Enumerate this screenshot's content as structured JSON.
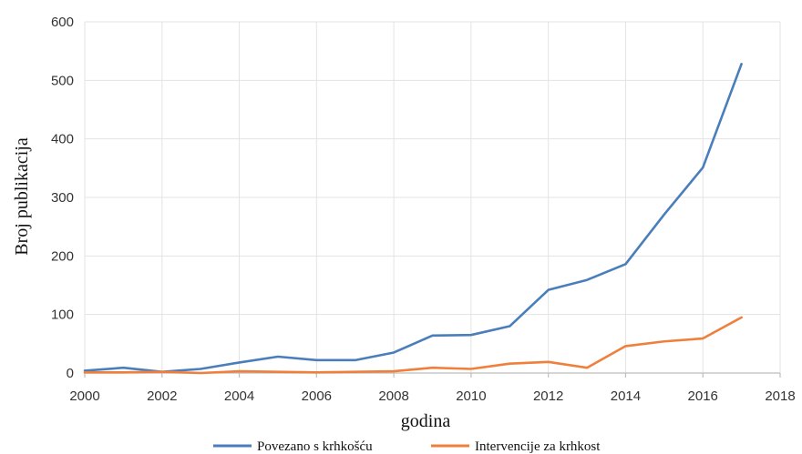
{
  "chart_data": {
    "type": "line",
    "title": "",
    "xlabel": "godina",
    "ylabel": "Broj publikacija",
    "xlim": [
      2000,
      2018
    ],
    "ylim": [
      0,
      600
    ],
    "x_ticks": [
      2000,
      2002,
      2004,
      2006,
      2008,
      2010,
      2012,
      2014,
      2016,
      2018
    ],
    "y_ticks": [
      0,
      100,
      200,
      300,
      400,
      500,
      600
    ],
    "grid": true,
    "legend_position": "bottom",
    "series": [
      {
        "name": "Povezano s krhkošću",
        "color": "#4a7ebb",
        "x": [
          2000,
          2001,
          2002,
          2003,
          2004,
          2005,
          2006,
          2007,
          2008,
          2009,
          2010,
          2011,
          2012,
          2013,
          2014,
          2015,
          2016,
          2017
        ],
        "values": [
          4,
          9,
          2,
          7,
          18,
          28,
          22,
          22,
          35,
          64,
          65,
          80,
          142,
          159,
          186,
          271,
          351,
          528
        ]
      },
      {
        "name": "Intervencije za krhkost",
        "color": "#f07f3c",
        "x": [
          2000,
          2001,
          2002,
          2003,
          2004,
          2005,
          2006,
          2007,
          2008,
          2009,
          2010,
          2011,
          2012,
          2013,
          2014,
          2015,
          2016,
          2017
        ],
        "values": [
          1,
          1,
          2,
          0,
          3,
          2,
          1,
          2,
          3,
          9,
          7,
          16,
          19,
          9,
          46,
          54,
          59,
          95
        ]
      }
    ]
  }
}
